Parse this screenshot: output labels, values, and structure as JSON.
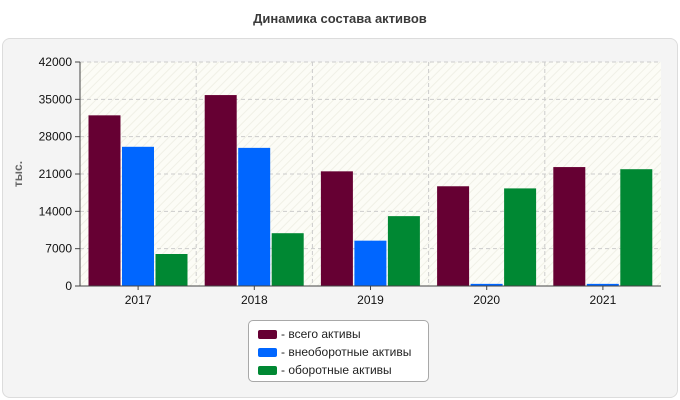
{
  "chart_data": {
    "type": "bar",
    "title": "Динамика состава активов",
    "ylabel": "тыс.",
    "xlabel": "",
    "categories": [
      "2017",
      "2018",
      "2019",
      "2020",
      "2021"
    ],
    "ylim": [
      0,
      42000
    ],
    "yticks": [
      "0",
      "7000",
      "14000",
      "21000",
      "28000",
      "35000",
      "42000"
    ],
    "grid": true,
    "legend_position": "bottom",
    "series": [
      {
        "name": "- всего активы",
        "color": "#660033",
        "values": [
          32000,
          35800,
          21500,
          18700,
          22300
        ]
      },
      {
        "name": "- внеоборотные активы",
        "color": "#0066ff",
        "values": [
          26100,
          25900,
          8500,
          400,
          400
        ]
      },
      {
        "name": "- оборотные активы",
        "color": "#008833",
        "values": [
          6000,
          9900,
          13100,
          18300,
          21900
        ]
      }
    ]
  }
}
